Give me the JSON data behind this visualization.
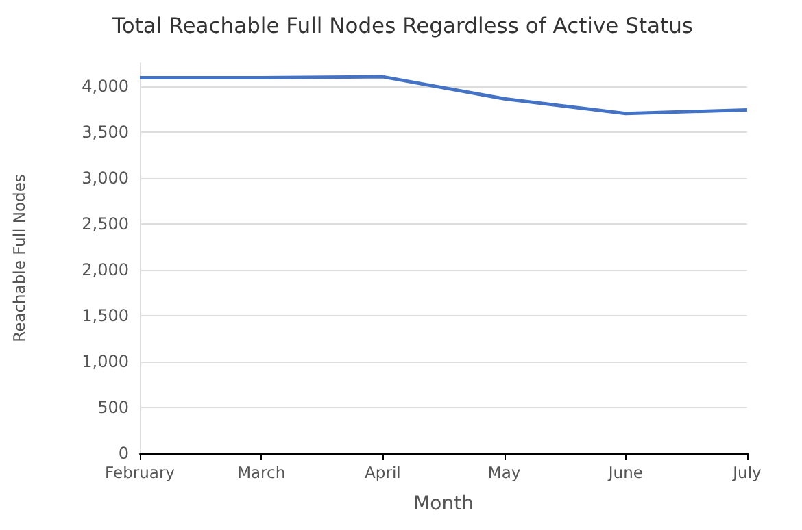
{
  "chart_data": {
    "type": "line",
    "title": "Total Reachable Full Nodes Regardless of Active Status",
    "xlabel": "Month",
    "ylabel": "Reachable Full Nodes",
    "categories": [
      "February",
      "March",
      "April",
      "May",
      "June",
      "July"
    ],
    "series": [
      {
        "color": "#4472c4",
        "values": [
          4090,
          4090,
          4100,
          3860,
          3700,
          3740
        ]
      }
    ],
    "ylim": [
      0,
      4250
    ],
    "yticks": [
      0,
      500,
      {
        "value": 1000,
        "label": "1,000"
      },
      {
        "value": 1500,
        "label": "1,500"
      },
      {
        "value": 2000,
        "label": "2,000"
      },
      {
        "value": 2500,
        "label": "2,500"
      },
      {
        "value": 3000,
        "label": "3,000"
      },
      {
        "value": 3500,
        "label": "3,500"
      },
      {
        "value": 4000,
        "label": "4,000"
      }
    ],
    "grid": "y",
    "marker": "none",
    "line_style": "solid"
  }
}
